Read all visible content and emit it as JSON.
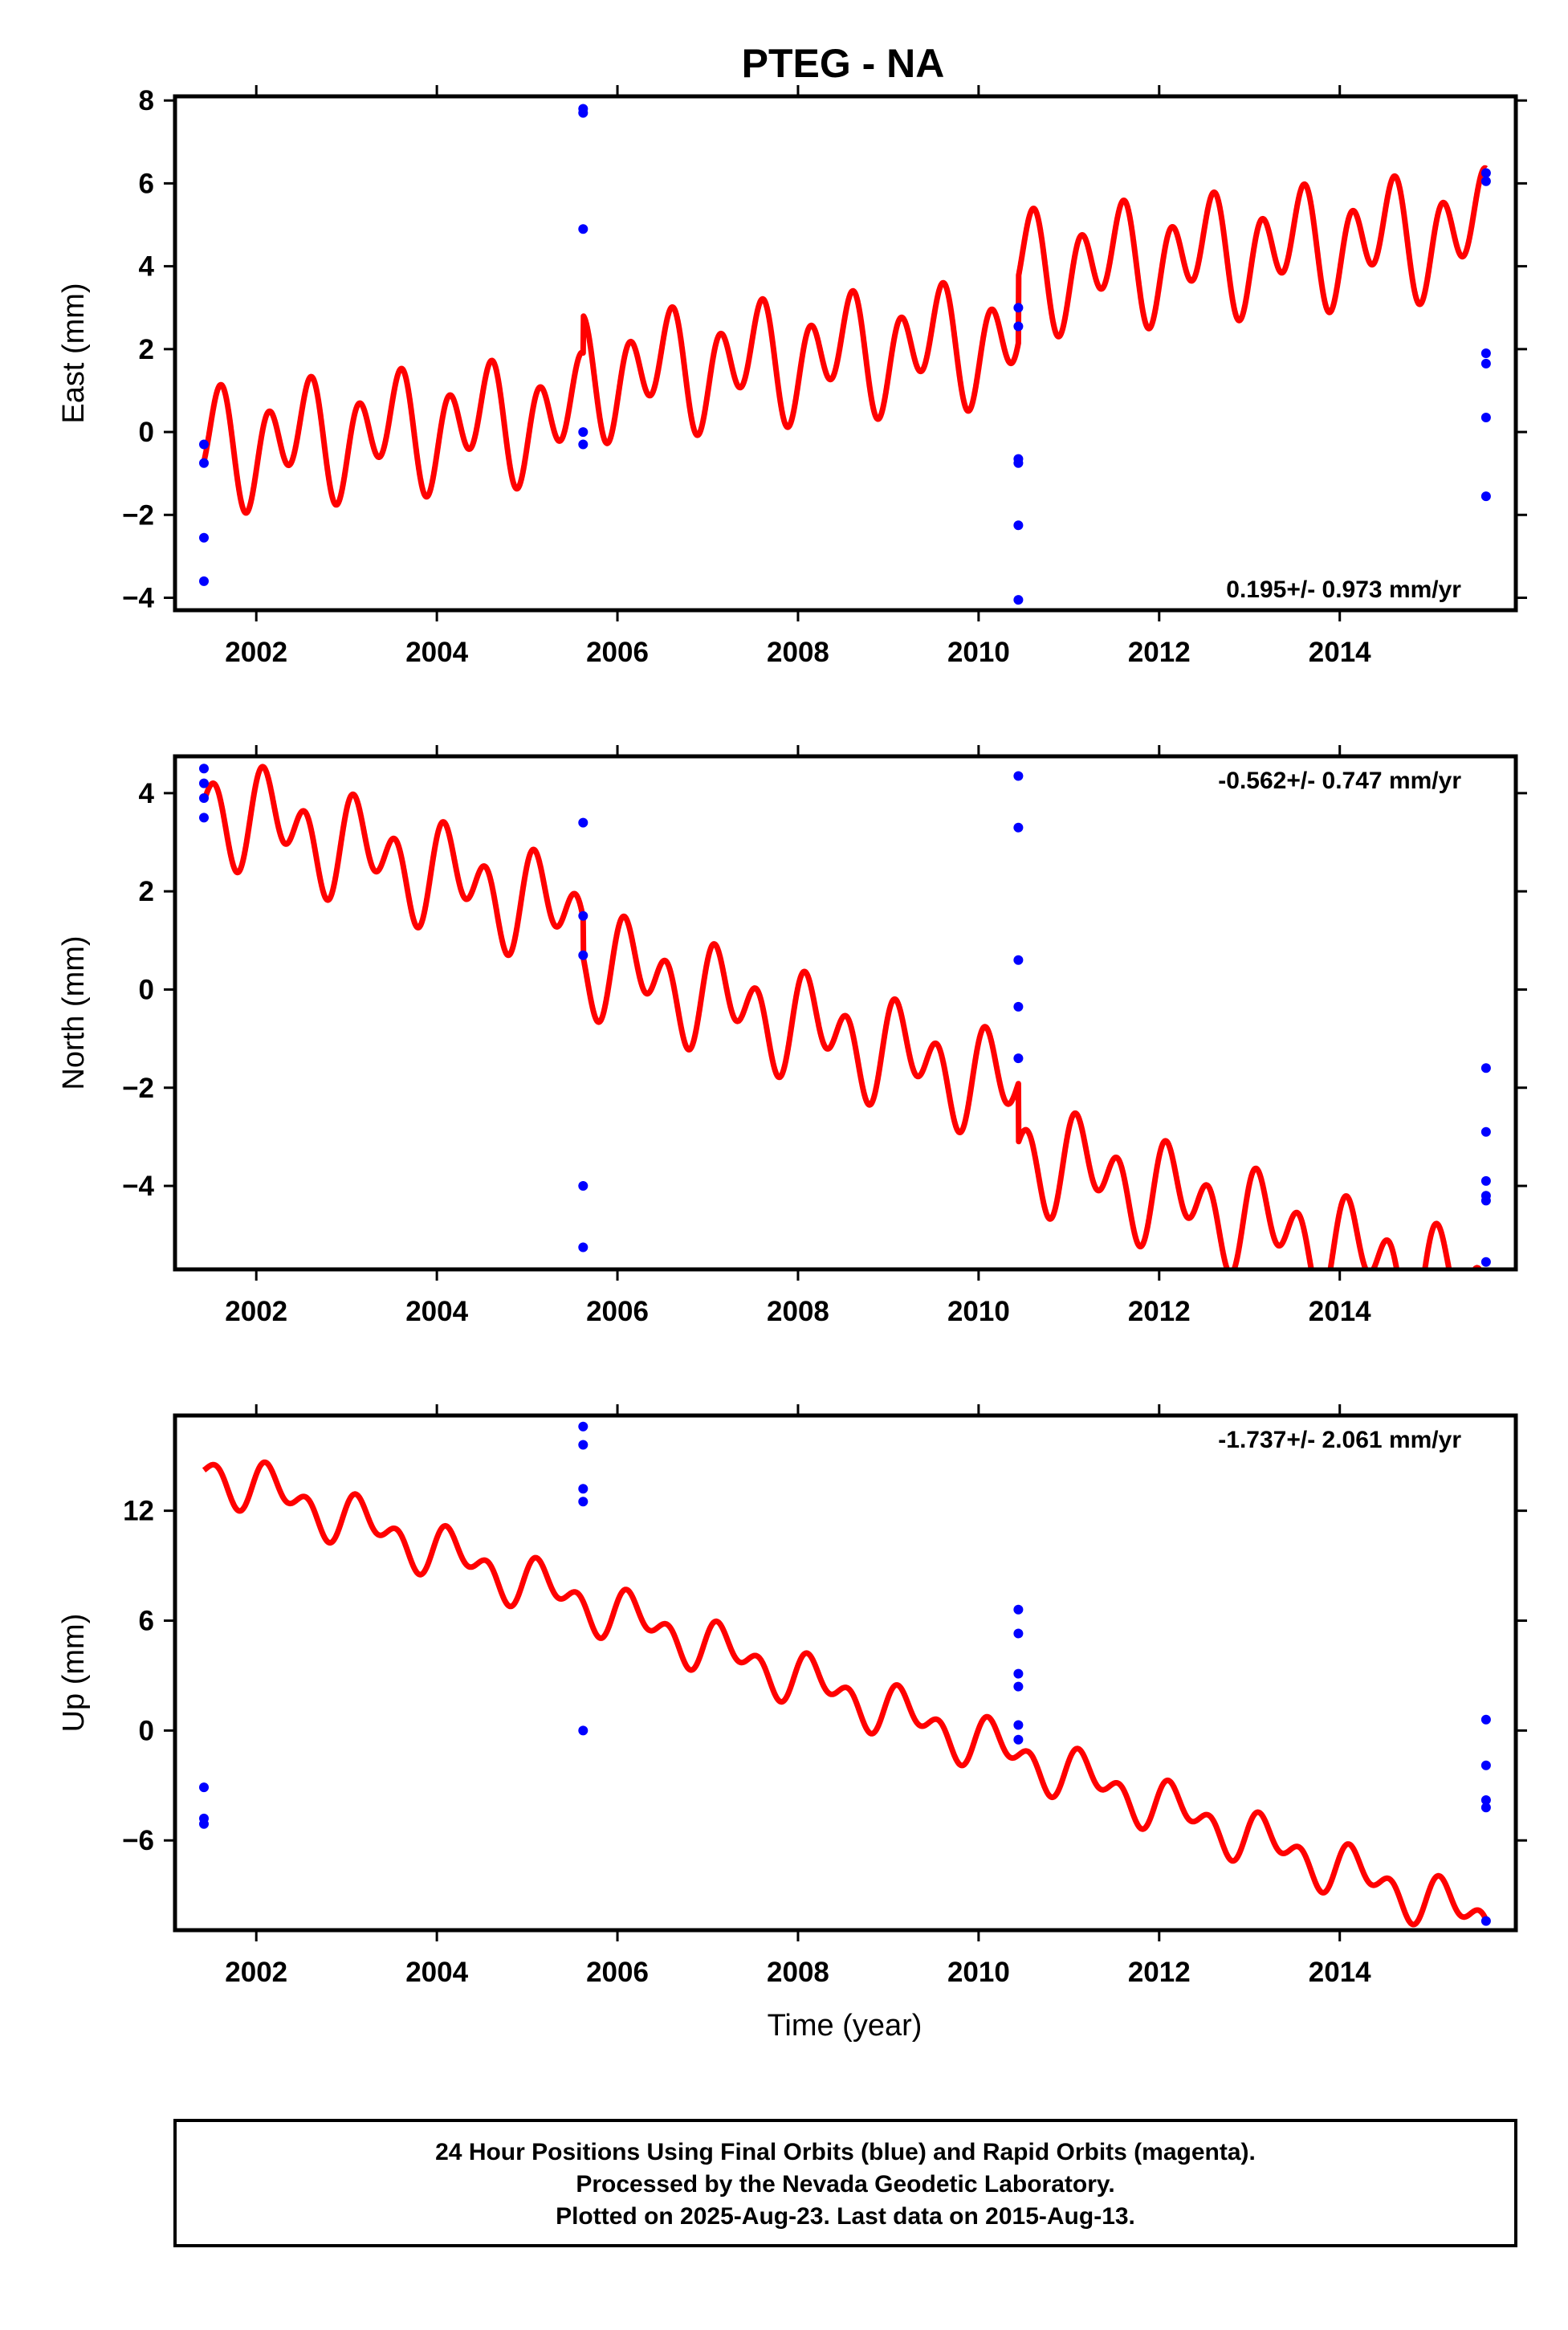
{
  "title": "PTEG - NA",
  "colors": {
    "model": "#ff0000",
    "final_orbits": "#0000ff",
    "frame": "#000000"
  },
  "chart_data": [
    {
      "type": "scatter",
      "ylabel": "East (mm)",
      "xlim": [
        2001.1,
        2015.95
      ],
      "ylim": [
        -4.3,
        8.1
      ],
      "xticks": [
        2002,
        2004,
        2006,
        2008,
        2010,
        2012,
        2014
      ],
      "yticks": [
        -4,
        -2,
        0,
        2,
        4,
        6,
        8
      ],
      "rate_label": "0.195+/- 0.973 mm/yr",
      "rate_position": "bottom-right",
      "points": [
        [
          2001.42,
          -0.3
        ],
        [
          2001.42,
          -0.75
        ],
        [
          2001.42,
          -2.55
        ],
        [
          2001.42,
          -3.6
        ],
        [
          2005.62,
          7.8
        ],
        [
          2005.62,
          7.7
        ],
        [
          2005.62,
          4.9
        ],
        [
          2005.62,
          0.0
        ],
        [
          2005.62,
          -0.3
        ],
        [
          2010.44,
          3.0
        ],
        [
          2010.44,
          2.55
        ],
        [
          2010.44,
          -0.65
        ],
        [
          2010.44,
          -0.75
        ],
        [
          2010.44,
          -2.25
        ],
        [
          2010.44,
          -4.05
        ],
        [
          2015.62,
          6.25
        ],
        [
          2015.62,
          6.05
        ],
        [
          2015.62,
          1.9
        ],
        [
          2015.62,
          1.65
        ],
        [
          2015.62,
          0.35
        ],
        [
          2015.62,
          -1.55
        ]
      ],
      "model": {
        "start": 2001.42,
        "end": 2015.62,
        "offset": -0.4,
        "slope": 0.195,
        "annual_amp": 0.65,
        "annual_phase": -1.4,
        "semi_amp": 1.1,
        "semi_phase": 0.0,
        "steps": [
          [
            2005.62,
            0.9
          ],
          [
            2010.44,
            1.6
          ]
        ]
      }
    },
    {
      "type": "scatter",
      "ylabel": "North (mm)",
      "xlim": [
        2001.1,
        2015.95
      ],
      "ylim": [
        -5.7,
        4.75
      ],
      "xticks": [
        2002,
        2004,
        2006,
        2008,
        2010,
        2012,
        2014
      ],
      "yticks": [
        -4,
        -2,
        0,
        2,
        4
      ],
      "rate_label": "-0.562+/- 0.747 mm/yr",
      "rate_position": "top-right",
      "points": [
        [
          2001.42,
          4.5
        ],
        [
          2001.42,
          4.2
        ],
        [
          2001.42,
          3.9
        ],
        [
          2001.42,
          3.5
        ],
        [
          2005.62,
          3.4
        ],
        [
          2005.62,
          1.5
        ],
        [
          2005.62,
          0.7
        ],
        [
          2005.62,
          -4.0
        ],
        [
          2005.62,
          -5.25
        ],
        [
          2010.44,
          4.35
        ],
        [
          2010.44,
          3.3
        ],
        [
          2010.44,
          0.6
        ],
        [
          2010.44,
          -0.35
        ],
        [
          2010.44,
          -1.4
        ],
        [
          2015.62,
          -1.6
        ],
        [
          2015.62,
          -2.9
        ],
        [
          2015.62,
          -3.9
        ],
        [
          2015.62,
          -4.2
        ],
        [
          2015.62,
          -4.3
        ],
        [
          2015.62,
          -5.55
        ]
      ],
      "model": {
        "start": 2001.42,
        "end": 2015.62,
        "offset": 3.8,
        "slope": -0.562,
        "annual_amp": 0.55,
        "annual_phase": 0.3,
        "semi_amp": 0.75,
        "semi_phase": 0.9,
        "steps": [
          [
            2005.62,
            -0.8
          ],
          [
            2010.44,
            -1.2
          ]
        ]
      }
    },
    {
      "type": "scatter",
      "ylabel": "Up (mm)",
      "xlim": [
        2001.1,
        2015.95
      ],
      "ylim": [
        -10.9,
        17.2
      ],
      "xticks": [
        2002,
        2004,
        2006,
        2008,
        2010,
        2012,
        2014
      ],
      "yticks": [
        -6,
        0,
        6,
        12
      ],
      "rate_label": "-1.737+/- 2.061 mm/yr",
      "rate_position": "top-right",
      "points": [
        [
          2001.42,
          -3.1
        ],
        [
          2001.42,
          -4.8
        ],
        [
          2001.42,
          -5.1
        ],
        [
          2005.62,
          16.6
        ],
        [
          2005.62,
          15.6
        ],
        [
          2005.62,
          13.2
        ],
        [
          2005.62,
          12.5
        ],
        [
          2005.62,
          0.0
        ],
        [
          2010.44,
          6.6
        ],
        [
          2010.44,
          5.3
        ],
        [
          2010.44,
          3.1
        ],
        [
          2010.44,
          2.4
        ],
        [
          2010.44,
          0.3
        ],
        [
          2010.44,
          -0.5
        ],
        [
          2015.62,
          0.6
        ],
        [
          2015.62,
          -1.9
        ],
        [
          2015.62,
          -3.8
        ],
        [
          2015.62,
          -4.2
        ],
        [
          2015.62,
          -10.4
        ]
      ],
      "model": {
        "start": 2001.42,
        "end": 2015.62,
        "offset": 14.3,
        "slope": -1.737,
        "annual_amp": 0.9,
        "annual_phase": 0.2,
        "semi_amp": 0.9,
        "semi_phase": 0.6,
        "steps": []
      }
    }
  ],
  "xlabel": "Time (year)",
  "footer": {
    "line1": "24 Hour Positions Using Final Orbits (blue) and Rapid Orbits (magenta).",
    "line2": "Processed by the Nevada Geodetic Laboratory.",
    "line3": "Plotted on 2025-Aug-23. Last data on 2015-Aug-13."
  }
}
